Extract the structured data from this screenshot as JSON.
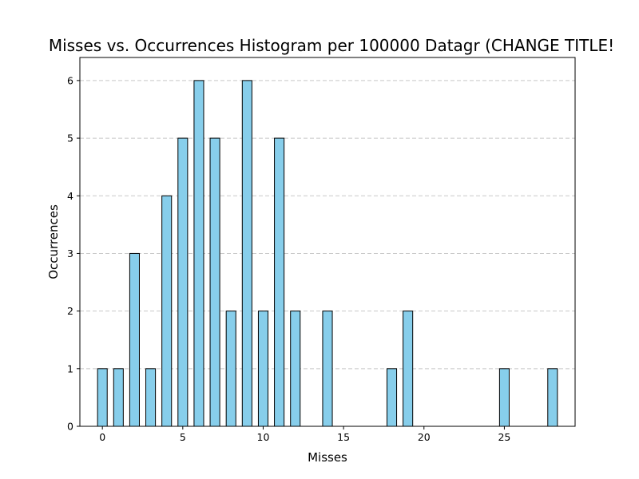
{
  "chart_data": {
    "type": "bar",
    "title": "Misses vs. Occurrences Histogram per 100000 Datagr (CHANGE TITLE!",
    "xlabel": "Misses",
    "ylabel": "Occurrences",
    "x": [
      0,
      1,
      2,
      3,
      4,
      5,
      6,
      7,
      8,
      9,
      10,
      11,
      12,
      14,
      18,
      19,
      25,
      28
    ],
    "values": [
      1,
      1,
      3,
      1,
      4,
      5,
      6,
      5,
      2,
      6,
      2,
      5,
      2,
      2,
      1,
      2,
      1,
      1
    ],
    "xlim": [
      -1.4,
      29.4
    ],
    "ylim": [
      0,
      6.4
    ],
    "xticks": [
      0,
      5,
      10,
      15,
      20,
      25
    ],
    "xtick_labels": [
      "0",
      "5",
      "10",
      "15",
      "20",
      "25"
    ],
    "yticks": [
      0,
      1,
      2,
      3,
      4,
      5,
      6
    ],
    "ytick_labels": [
      "0",
      "1",
      "2",
      "3",
      "4",
      "5",
      "6"
    ],
    "grid": "y-dashed",
    "bar_color": "#87ceeb",
    "edge_color": "#000000",
    "grid_color": "#c8c8c8",
    "legend": "none"
  }
}
